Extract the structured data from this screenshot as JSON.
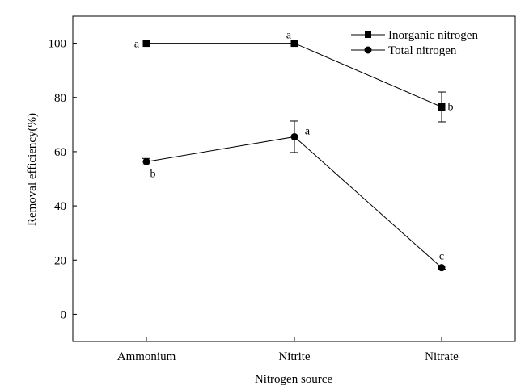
{
  "chart_data": {
    "type": "line",
    "title": "",
    "xlabel": "Nitrogen source",
    "ylabel": "Removal efficiency(%)",
    "categories": [
      "Ammonium",
      "Nitrite",
      "Nitrate"
    ],
    "ylim": [
      -10,
      110
    ],
    "yticks": [
      0,
      20,
      40,
      60,
      80,
      100
    ],
    "yticklabels": [
      "0",
      "20",
      "40",
      "60",
      "80",
      "100"
    ],
    "grid": false,
    "legend_position": "top-right",
    "series": [
      {
        "name": "Inorganic nitrogen",
        "marker": "square",
        "values": [
          100,
          100,
          76.5
        ],
        "errors": [
          0,
          0,
          5.5
        ],
        "letters": [
          "a",
          "a",
          "b"
        ],
        "color": "#000000"
      },
      {
        "name": "Total nitrogen",
        "marker": "circle",
        "values": [
          56.3,
          65.5,
          17.2
        ],
        "errors": [
          1.2,
          5.8,
          0.6
        ],
        "letters": [
          "b",
          "a",
          "c"
        ],
        "color": "#000000"
      }
    ]
  }
}
